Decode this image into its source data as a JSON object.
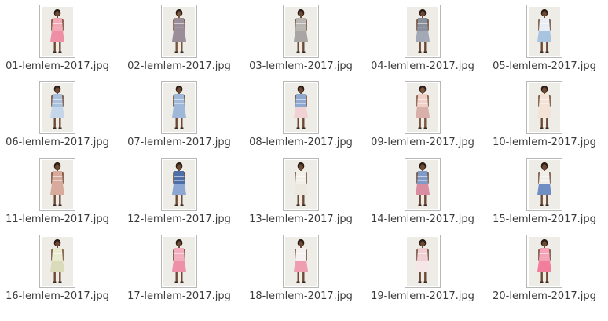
{
  "files": [
    {
      "name": "01-lemlem-2017.jpg",
      "icon": "image-thumbnail-icon",
      "skin": "#6e4a34",
      "top": "#f2a9b4",
      "bottom": "#ee8fa6",
      "hair": "#2a1c14"
    },
    {
      "name": "02-lemlem-2017.jpg",
      "icon": "image-thumbnail-icon",
      "skin": "#7b543b",
      "top": "#9b8c9a",
      "bottom": "#9b8c9a",
      "hair": "#2a1c14"
    },
    {
      "name": "03-lemlem-2017.jpg",
      "icon": "image-thumbnail-icon",
      "skin": "#6e4a34",
      "top": "#b8b4b0",
      "bottom": "#a9a5a4",
      "hair": "#2a1c14"
    },
    {
      "name": "04-lemlem-2017.jpg",
      "icon": "image-thumbnail-icon",
      "skin": "#6e4a34",
      "top": "#8a8f9c",
      "bottom": "#a3a8b5",
      "hair": "#2a1c14"
    },
    {
      "name": "05-lemlem-2017.jpg",
      "icon": "image-thumbnail-icon",
      "skin": "#6e4a34",
      "top": "#e9eef6",
      "bottom": "#a9c4e0",
      "hair": "#2a1c14"
    },
    {
      "name": "06-lemlem-2017.jpg",
      "icon": "image-thumbnail-icon",
      "skin": "#6e4a34",
      "top": "#a8c0dc",
      "bottom": "#c6d6ea",
      "hair": "#2a1c14"
    },
    {
      "name": "07-lemlem-2017.jpg",
      "icon": "image-thumbnail-icon",
      "skin": "#6e4a34",
      "top": "#9fb7d8",
      "bottom": "#9fb7d8",
      "hair": "#2a1c14"
    },
    {
      "name": "08-lemlem-2017.jpg",
      "icon": "image-thumbnail-icon",
      "skin": "#6e4a34",
      "top": "#8fa8d0",
      "bottom": "#f1d2d4",
      "hair": "#2a1c14"
    },
    {
      "name": "09-lemlem-2017.jpg",
      "icon": "image-thumbnail-icon",
      "skin": "#7b543b",
      "top": "#f0cfc6",
      "bottom": "#d9b0a9",
      "hair": "#2a1c14"
    },
    {
      "name": "10-lemlem-2017.jpg",
      "icon": "image-thumbnail-icon",
      "skin": "#6e4a34",
      "top": "#f3e2d6",
      "bottom": "#f3e2d6",
      "hair": "#2a1c14"
    },
    {
      "name": "11-lemlem-2017.jpg",
      "icon": "image-thumbnail-icon",
      "skin": "#6e4a34",
      "top": "#d7aa9c",
      "bottom": "#d7aa9c",
      "hair": "#2a1c14"
    },
    {
      "name": "12-lemlem-2017.jpg",
      "icon": "image-thumbnail-icon",
      "skin": "#6e4a34",
      "top": "#4e6ea8",
      "bottom": "#8da7d2",
      "hair": "#2a1c14"
    },
    {
      "name": "13-lemlem-2017.jpg",
      "icon": "image-thumbnail-icon",
      "skin": "#6e4a34",
      "top": "#f2efe9",
      "bottom": "#ece8df",
      "hair": "#2a1c14"
    },
    {
      "name": "14-lemlem-2017.jpg",
      "icon": "image-thumbnail-icon",
      "skin": "#6e4a34",
      "top": "#7f9ac6",
      "bottom": "#d98da0",
      "hair": "#2a1c14"
    },
    {
      "name": "15-lemlem-2017.jpg",
      "icon": "image-thumbnail-icon",
      "skin": "#6e4a34",
      "top": "#f1eeea",
      "bottom": "#6f8fc4",
      "hair": "#2a1c14"
    },
    {
      "name": "16-lemlem-2017.jpg",
      "icon": "image-thumbnail-icon",
      "skin": "#6e4a34",
      "top": "#eaeacf",
      "bottom": "#dadcb9",
      "hair": "#2a1c14"
    },
    {
      "name": "17-lemlem-2017.jpg",
      "icon": "image-thumbnail-icon",
      "skin": "#6e4a34",
      "top": "#f2aebd",
      "bottom": "#ee90a8",
      "hair": "#2a1c14"
    },
    {
      "name": "18-lemlem-2017.jpg",
      "icon": "image-thumbnail-icon",
      "skin": "#6e4a34",
      "top": "#f6f1f1",
      "bottom": "#ef9db0",
      "hair": "#2a1c14"
    },
    {
      "name": "19-lemlem-2017.jpg",
      "icon": "image-thumbnail-icon",
      "skin": "#6e4a34",
      "top": "#f0cfd4",
      "bottom": "#f5e7e8",
      "hair": "#2a1c14"
    },
    {
      "name": "20-lemlem-2017.jpg",
      "icon": "image-thumbnail-icon",
      "skin": "#6e4a34",
      "top": "#f4a3b8",
      "bottom": "#f07e9c",
      "hair": "#2a1c14"
    }
  ]
}
